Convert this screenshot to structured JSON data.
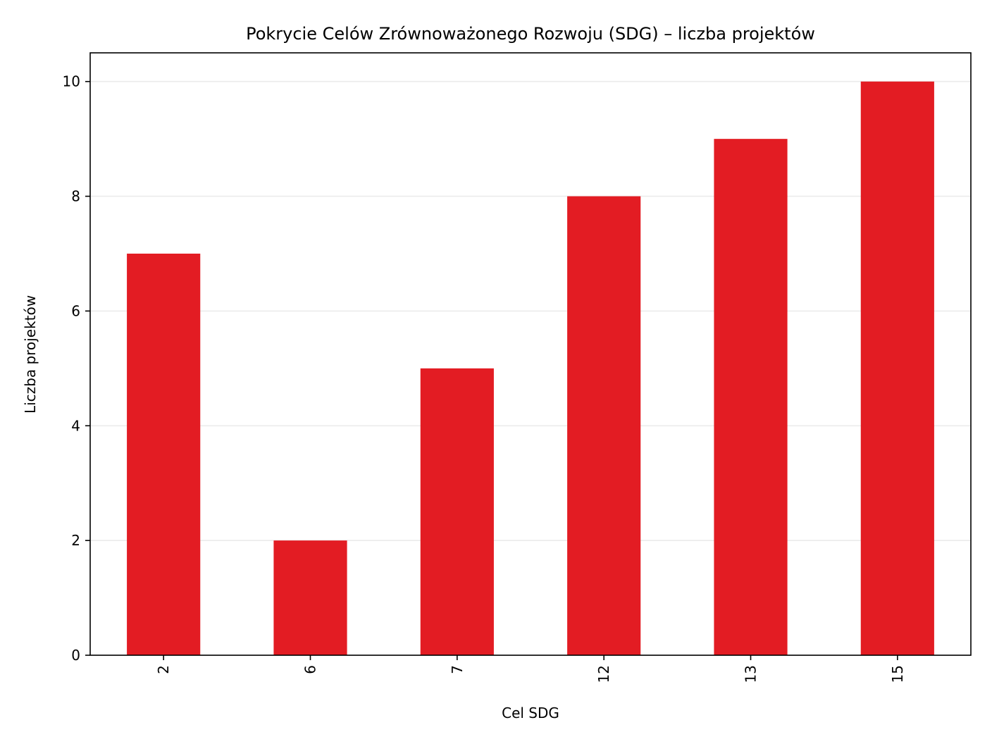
{
  "chart_data": {
    "type": "bar",
    "title": "Pokrycie Celów Zrównoważonego Rozwoju (SDG) – liczba projektów",
    "xlabel": "Cel SDG",
    "ylabel": "Liczba projektów",
    "categories": [
      "2",
      "6",
      "7",
      "12",
      "13",
      "15"
    ],
    "values": [
      7,
      2,
      5,
      8,
      9,
      10
    ],
    "ylim": [
      0,
      10.5
    ],
    "yticks": [
      "0",
      "2",
      "4",
      "6",
      "8",
      "10"
    ],
    "grid": "horizontal",
    "bar_color": "#e31c23",
    "grid_color": "#ebebeb"
  }
}
